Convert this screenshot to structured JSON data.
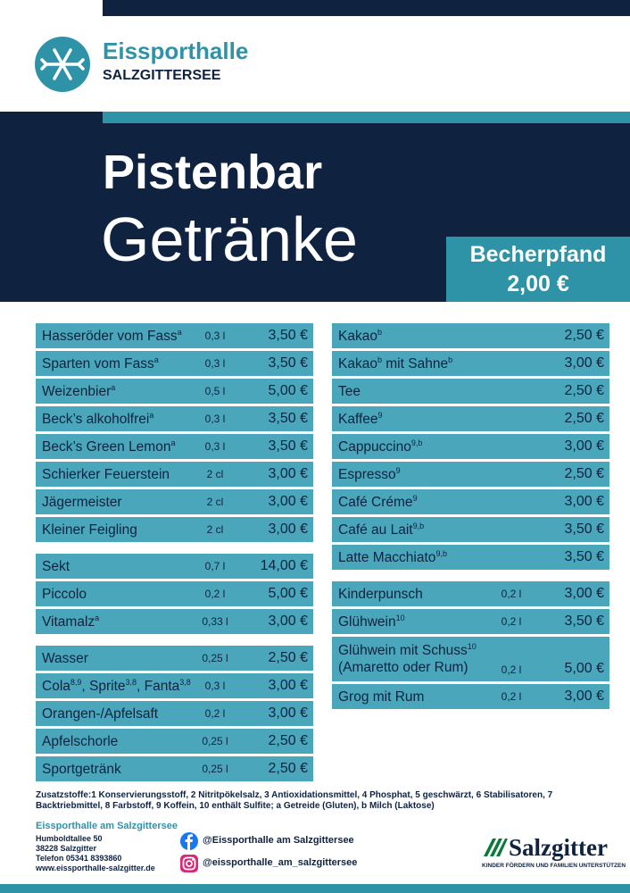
{
  "header": {
    "brand": "Eissporthalle",
    "subbrand": "SALZGITTERSEE"
  },
  "hero": {
    "title": "Pistenbar",
    "subtitle": "Getränke",
    "deposit_label": "Becherpfand",
    "deposit_price": "2,00 €"
  },
  "menu": {
    "left": [
      {
        "items": [
          {
            "parts": [
              {
                "text": "Hasseröder vom Fass",
                "sup": "a"
              }
            ],
            "size": "0,3 l",
            "price": "3,50 €"
          },
          {
            "parts": [
              {
                "text": "Sparten vom Fass",
                "sup": "a"
              }
            ],
            "size": "0,3 l",
            "price": "3,50 €"
          },
          {
            "parts": [
              {
                "text": "Weizenbier",
                "sup": "a"
              }
            ],
            "size": "0,5 l",
            "price": "5,00 €"
          },
          {
            "parts": [
              {
                "text": "Beck’s alkoholfrei",
                "sup": "a"
              }
            ],
            "size": "0,3 l",
            "price": "3,50 €"
          },
          {
            "parts": [
              {
                "text": "Beck’s Green Lemon",
                "sup": "a"
              }
            ],
            "size": "0,3 l",
            "price": "3,50 €"
          },
          {
            "parts": [
              {
                "text": "Schierker Feuerstein"
              }
            ],
            "size": "2 cl",
            "price": "3,00 €"
          },
          {
            "parts": [
              {
                "text": "Jägermeister"
              }
            ],
            "size": "2 cl",
            "price": "3,00 €"
          },
          {
            "parts": [
              {
                "text": "Kleiner Feigling"
              }
            ],
            "size": "2 cl",
            "price": "3,00 €"
          }
        ]
      },
      {
        "items": [
          {
            "parts": [
              {
                "text": "Sekt"
              }
            ],
            "size": "0,7 l",
            "price": "14,00 €"
          },
          {
            "parts": [
              {
                "text": "Piccolo"
              }
            ],
            "size": "0,2 l",
            "price": "5,00 €"
          },
          {
            "parts": [
              {
                "text": "Vitamalz",
                "sup": "a"
              }
            ],
            "size": "0,33 l",
            "price": "3,00 €"
          }
        ]
      },
      {
        "items": [
          {
            "parts": [
              {
                "text": "Wasser"
              }
            ],
            "size": "0,25 l",
            "price": "2,50 €"
          },
          {
            "parts": [
              {
                "text": "Cola",
                "sup": "8,9"
              },
              {
                "text": ", Sprite",
                "sup": "3,8"
              },
              {
                "text": ", Fanta",
                "sup": "3,8"
              }
            ],
            "size": "0,3 l",
            "price": "3,00 €"
          },
          {
            "parts": [
              {
                "text": "Orangen-/Apfelsaft"
              }
            ],
            "size": "0,2 l",
            "price": "3,00 €"
          },
          {
            "parts": [
              {
                "text": "Apfelschorle"
              }
            ],
            "size": "0,25 l",
            "price": "2,50 €"
          },
          {
            "parts": [
              {
                "text": "Sportgetränk"
              }
            ],
            "size": "0,25 l",
            "price": "2,50 €"
          }
        ]
      }
    ],
    "right": [
      {
        "items": [
          {
            "parts": [
              {
                "text": "Kakao",
                "sup": "b"
              }
            ],
            "price": "2,50 €"
          },
          {
            "parts": [
              {
                "text": "Kakao",
                "sup": "b"
              },
              {
                "text": " mit Sahne",
                "sup": "b"
              }
            ],
            "price": "3,00 €"
          },
          {
            "parts": [
              {
                "text": "Tee"
              }
            ],
            "price": "2,50 €"
          },
          {
            "parts": [
              {
                "text": "Kaffee",
                "sup": "9"
              }
            ],
            "price": "2,50 €"
          },
          {
            "parts": [
              {
                "text": "Cappuccino",
                "sup": "9,b"
              }
            ],
            "price": "3,00 €"
          },
          {
            "parts": [
              {
                "text": "Espresso",
                "sup": "9"
              }
            ],
            "price": "2,50 €"
          },
          {
            "parts": [
              {
                "text": "Café Créme",
                "sup": "9"
              }
            ],
            "price": "3,00 €"
          },
          {
            "parts": [
              {
                "text": "Café au Lait",
                "sup": "9,b"
              }
            ],
            "price": "3,50 €"
          },
          {
            "parts": [
              {
                "text": "Latte Macchiato",
                "sup": "9,b"
              }
            ],
            "price": "3,50 €"
          }
        ]
      },
      {
        "items": [
          {
            "parts": [
              {
                "text": "Kinderpunsch"
              }
            ],
            "size": "0,2 l",
            "price": "3,00 €"
          },
          {
            "parts": [
              {
                "text": "Glühwein",
                "sup": "10"
              }
            ],
            "size": "0,2 l",
            "price": "3,50 €"
          },
          {
            "parts": [
              {
                "text": "Glühwein mit Schuss",
                "sup": "10"
              }
            ],
            "line2": "(Amaretto oder Rum)",
            "size": "0,2 l",
            "price": "5,00 €"
          },
          {
            "parts": [
              {
                "text": "Grog mit Rum"
              }
            ],
            "size": "0,2 l",
            "price": "3,00 €"
          }
        ]
      }
    ]
  },
  "footer": {
    "additives": "Zusatzstoffe:1 Konservierungsstoff, 2 Nitritpökelsalz, 3 Antioxidationsmittel, 4 Phosphat, 5 geschwärzt, 6 Stabilisatoren, 7 Backtriebmittel, 8 Farbstoff, 9 Koffein, 10 enthält Sulfite; a Getreide (Gluten), b Milch (Laktose)",
    "venue": "Eissporthalle am Salzgittersee",
    "address": [
      "Humboldtallee 50",
      "38228 Salzgitter",
      "Telefon 05341 8393860",
      "www.eissporthalle-salzgitter.de"
    ],
    "facebook": "@Eissporthalle am Salzgittersee",
    "instagram": "@eissporthalle_am_salzgittersee",
    "sponsor": "Salzgitter",
    "sponsor_slogan": "KINDER FÖRDERN UND FAMILIEN UNTERSTÜTZEN"
  }
}
